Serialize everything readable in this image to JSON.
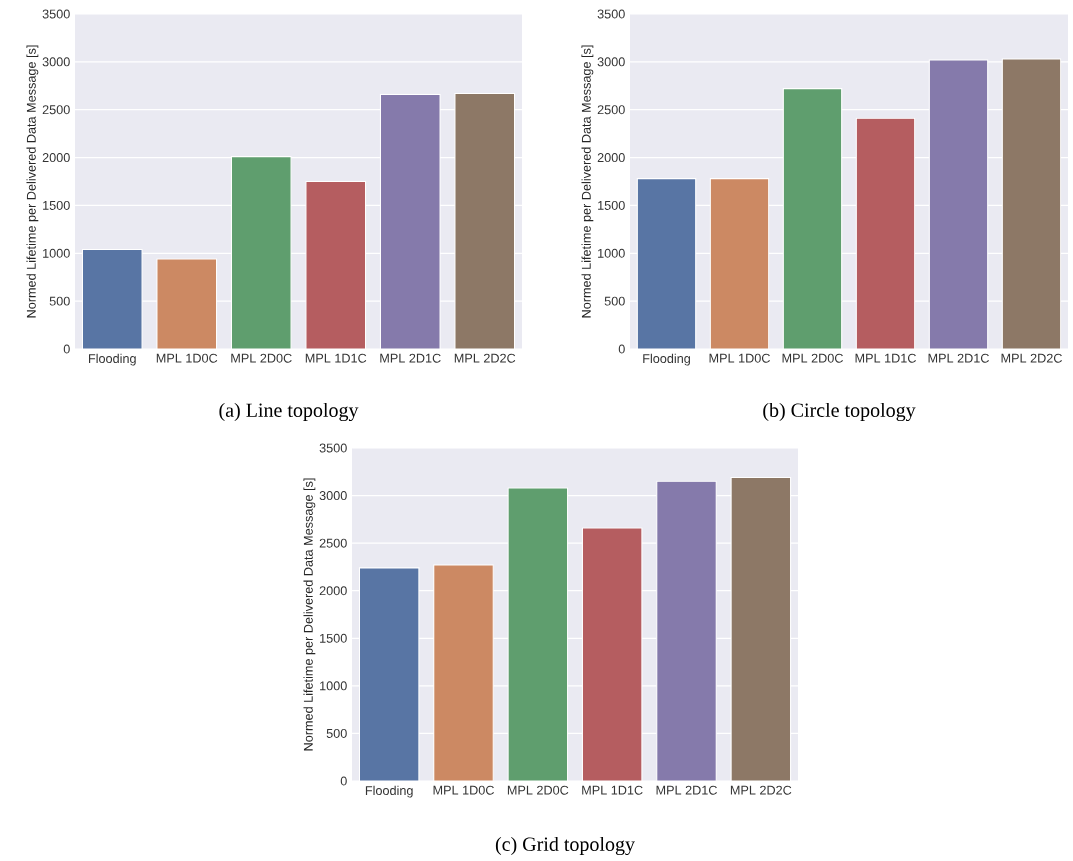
{
  "chart_data": [
    {
      "type": "bar",
      "ylabel": "Normed Lifetime per Delivered Data Message [s]",
      "categories": [
        "Flooding",
        "MPL 1D0C",
        "MPL 2D0C",
        "MPL 1D1C",
        "MPL 2D1C",
        "MPL 2D2C"
      ],
      "values": [
        1040,
        940,
        2010,
        1750,
        2660,
        2670
      ],
      "colors": [
        "#5875a4",
        "#cc8963",
        "#5f9e6e",
        "#b55d60",
        "#857aab",
        "#8d7866"
      ],
      "ylim": [
        0,
        3500
      ],
      "yticks": [
        0,
        500,
        1000,
        1500,
        2000,
        2500,
        3000,
        3500
      ],
      "grid": "y",
      "annotations": [
        "(a) Line topology"
      ]
    },
    {
      "type": "bar",
      "ylabel": "Normed Lifetime per Delivered Data Message [s]",
      "categories": [
        "Flooding",
        "MPL 1D0C",
        "MPL 2D0C",
        "MPL 1D1C",
        "MPL 2D1C",
        "MPL 2D2C"
      ],
      "values": [
        1780,
        1780,
        2720,
        2410,
        3020,
        3030
      ],
      "colors": [
        "#5875a4",
        "#cc8963",
        "#5f9e6e",
        "#b55d60",
        "#857aab",
        "#8d7866"
      ],
      "ylim": [
        0,
        3500
      ],
      "yticks": [
        0,
        500,
        1000,
        1500,
        2000,
        2500,
        3000,
        3500
      ],
      "grid": "y",
      "annotations": [
        "(b) Circle topology"
      ]
    },
    {
      "type": "bar",
      "ylabel": "Normed Lifetime per Delivered Data Message [s]",
      "categories": [
        "Flooding",
        "MPL 1D0C",
        "MPL 2D0C",
        "MPL 1D1C",
        "MPL 2D1C",
        "MPL 2D2C"
      ],
      "values": [
        2240,
        2270,
        3080,
        2660,
        3150,
        3190
      ],
      "colors": [
        "#5875a4",
        "#cc8963",
        "#5f9e6e",
        "#b55d60",
        "#857aab",
        "#8d7866"
      ],
      "ylim": [
        0,
        3500
      ],
      "yticks": [
        0,
        500,
        1000,
        1500,
        2000,
        2500,
        3000,
        3500
      ],
      "grid": "y",
      "annotations": [
        "(c) Grid topology"
      ]
    }
  ]
}
